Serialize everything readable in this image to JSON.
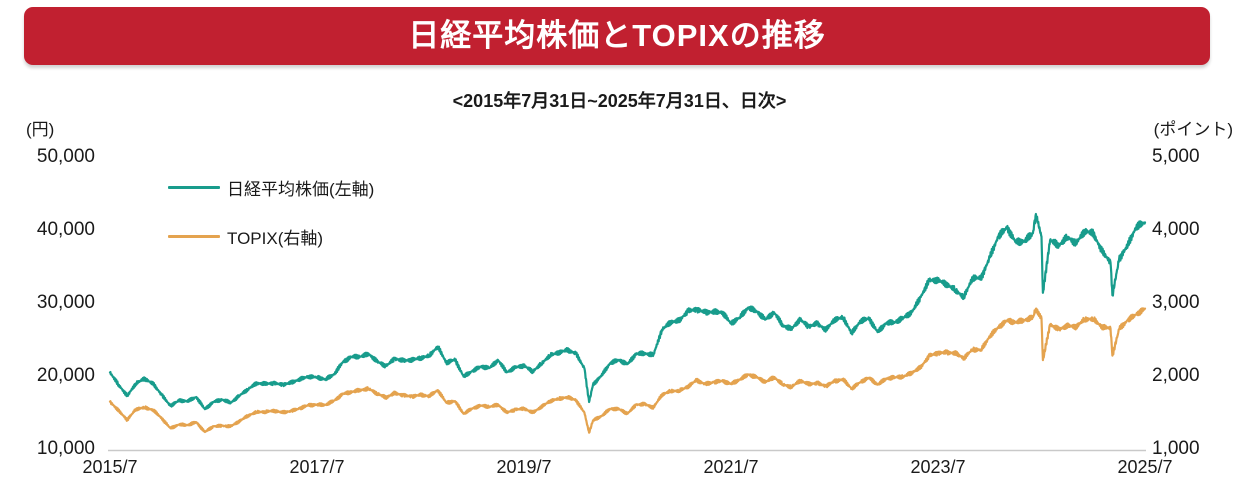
{
  "header": {
    "title": "日経平均株価とTOPIXの推移",
    "subtitle": "<2015年7月31日~2025年7月31日、日次>"
  },
  "colors": {
    "banner_red": "#c12030",
    "title_text": "#ffffff",
    "nikkei_teal": "#189c8c",
    "topix_orange": "#e4a34f",
    "axis_line_gray": "#c9c9c9"
  },
  "chart_data": {
    "type": "line",
    "title": "日経平均株価とTOPIXの推移",
    "subtitle": "<2015年7月31日~2025年7月31日、日次>",
    "grid": "off",
    "legend_position": "upper-left-inside",
    "left_axis": {
      "unit": "(円)",
      "min": 10000,
      "max": 50000,
      "ticks": [
        "50,000",
        "40,000",
        "30,000",
        "20,000",
        "10,000"
      ]
    },
    "right_axis": {
      "unit": "(ポイント)",
      "min": 1000,
      "max": 5000,
      "ticks": [
        "5,000",
        "4,000",
        "3,000",
        "2,000",
        "1,000"
      ]
    },
    "x_ticks": [
      "2015/7",
      "2017/7",
      "2019/7",
      "2021/7",
      "2023/7",
      "2025/7"
    ],
    "dates": [
      "2015/7",
      "2015/8",
      "2015/9",
      "2015/10",
      "2015/11",
      "2015/12",
      "2016/1",
      "2016/2",
      "2016/3",
      "2016/4",
      "2016/5",
      "2016/6",
      "2016/7",
      "2016/8",
      "2016/9",
      "2016/10",
      "2016/11",
      "2016/12",
      "2017/1",
      "2017/2",
      "2017/3",
      "2017/4",
      "2017/5",
      "2017/6",
      "2017/7",
      "2017/8",
      "2017/9",
      "2017/10",
      "2017/11",
      "2017/12",
      "2018/1",
      "2018/2",
      "2018/3",
      "2018/4",
      "2018/5",
      "2018/6",
      "2018/7",
      "2018/8",
      "2018/9",
      "2018/10",
      "2018/11",
      "2018/12",
      "2019/1",
      "2019/2",
      "2019/3",
      "2019/4",
      "2019/5",
      "2019/6",
      "2019/7",
      "2019/8",
      "2019/9",
      "2019/10",
      "2019/11",
      "2019/12",
      "2020/1",
      "2020/2",
      "2020/3/17",
      "2020/3",
      "2020/4",
      "2020/5",
      "2020/6",
      "2020/7",
      "2020/8",
      "2020/9",
      "2020/10",
      "2020/11",
      "2020/12",
      "2021/1",
      "2021/2",
      "2021/3",
      "2021/4",
      "2021/5",
      "2021/6",
      "2021/7",
      "2021/8",
      "2021/9",
      "2021/10",
      "2021/11",
      "2021/12",
      "2022/1",
      "2022/2",
      "2022/3",
      "2022/4",
      "2022/5",
      "2022/6",
      "2022/7",
      "2022/8",
      "2022/9",
      "2022/10",
      "2022/11",
      "2022/12",
      "2023/1",
      "2023/2",
      "2023/3",
      "2023/4",
      "2023/5",
      "2023/6",
      "2023/7",
      "2023/8",
      "2023/9",
      "2023/10",
      "2023/11",
      "2023/12",
      "2024/1",
      "2024/2",
      "2024/3",
      "2024/4",
      "2024/5",
      "2024/6",
      "2024/7/11",
      "2024/7",
      "2024/8/5",
      "2024/8",
      "2024/9",
      "2024/10",
      "2024/11",
      "2024/12",
      "2025/1",
      "2025/2",
      "2025/3",
      "2025/4/7",
      "2025/4",
      "2025/5",
      "2025/6",
      "2025/7"
    ],
    "series": [
      {
        "name": "日経平均株価(左軸)",
        "axis": "left",
        "color": "#189c8c",
        "values": [
          20585,
          18890,
          17388,
          19083,
          19747,
          19034,
          17518,
          16027,
          16759,
          16666,
          17235,
          15576,
          16569,
          16887,
          16450,
          17425,
          18308,
          19114,
          19041,
          19119,
          18909,
          19197,
          19651,
          20033,
          19925,
          19646,
          20356,
          22012,
          22725,
          22765,
          23098,
          22068,
          21454,
          22468,
          22202,
          22305,
          22554,
          22865,
          24120,
          21920,
          22351,
          20015,
          20773,
          21385,
          21206,
          22259,
          20601,
          21276,
          21522,
          20704,
          21756,
          22927,
          23294,
          23657,
          23205,
          21143,
          16553,
          18917,
          20194,
          21878,
          22288,
          21710,
          23140,
          23185,
          22977,
          26434,
          27444,
          27663,
          28966,
          29179,
          28813,
          28860,
          28792,
          27284,
          28090,
          29453,
          28893,
          27822,
          28792,
          27002,
          26527,
          27821,
          26848,
          27280,
          26393,
          27802,
          28092,
          25937,
          27587,
          27969,
          26095,
          27327,
          27446,
          28041,
          28856,
          30888,
          33189,
          33172,
          32619,
          31858,
          30859,
          33487,
          33464,
          36287,
          39166,
          40369,
          38406,
          38488,
          39583,
          42224,
          39102,
          31458,
          38648,
          37920,
          39081,
          38208,
          39895,
          39572,
          37156,
          35618,
          31136,
          36045,
          37965,
          40487,
          41070
        ]
      },
      {
        "name": "TOPIX(右軸)",
        "axis": "right",
        "color": "#e4a34f",
        "values": [
          1659,
          1537,
          1411,
          1558,
          1580,
          1547,
          1432,
          1297,
          1347,
          1340,
          1380,
          1246,
          1323,
          1330,
          1323,
          1393,
          1469,
          1519,
          1521,
          1536,
          1513,
          1531,
          1568,
          1612,
          1618,
          1617,
          1674,
          1766,
          1792,
          1818,
          1837,
          1768,
          1716,
          1777,
          1747,
          1730,
          1753,
          1735,
          1817,
          1646,
          1667,
          1494,
          1567,
          1607,
          1591,
          1617,
          1512,
          1551,
          1565,
          1511,
          1587,
          1667,
          1699,
          1721,
          1684,
          1510,
          1236,
          1403,
          1464,
          1563,
          1559,
          1496,
          1618,
          1626,
          1579,
          1755,
          1805,
          1809,
          1864,
          1954,
          1898,
          1926,
          1944,
          1901,
          1961,
          2031,
          1992,
          1929,
          1992,
          1896,
          1860,
          1946,
          1900,
          1913,
          1871,
          1940,
          1963,
          1836,
          1929,
          1986,
          1892,
          1975,
          1993,
          2003,
          2057,
          2130,
          2288,
          2322,
          2332,
          2323,
          2253,
          2374,
          2366,
          2551,
          2676,
          2768,
          2743,
          2772,
          2810,
          2929,
          2795,
          2227,
          2713,
          2646,
          2696,
          2681,
          2785,
          2789,
          2682,
          2659,
          2289,
          2651,
          2772,
          2853,
          2930
        ]
      }
    ]
  }
}
